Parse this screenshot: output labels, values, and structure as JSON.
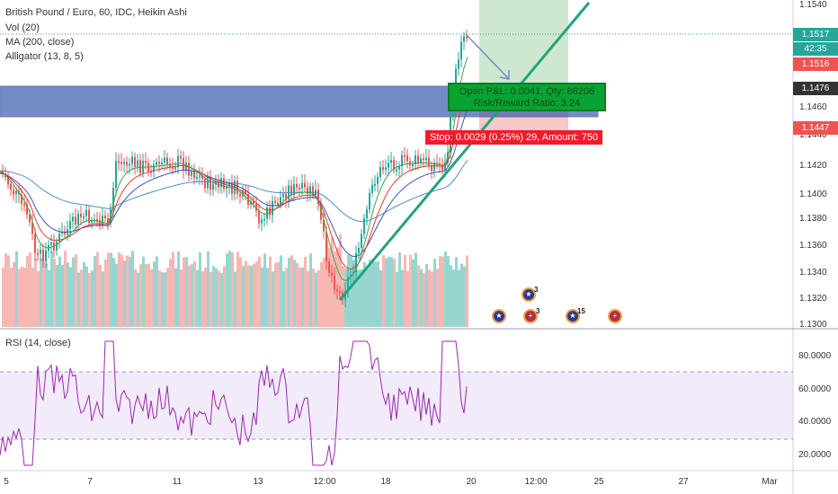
{
  "legend": {
    "title": "British Pound / Euro, 60, IDC, Heikin Ashi",
    "studies": [
      "Vol (20)",
      "MA (200, close)",
      "Alligator (13, 8, 5)"
    ],
    "rsi_label": "RSI (14, close)"
  },
  "price_axis": {
    "ticks": [
      "1.1540",
      "1.1460",
      "1.1440",
      "1.1420",
      "1.1400",
      "1.1380",
      "1.1360",
      "1.1340",
      "1.1320",
      "1.1300"
    ],
    "tags": [
      {
        "text": "1.1517",
        "color": "#26a69a"
      },
      {
        "text": "42:35",
        "color": "#26a69a"
      },
      {
        "text": "1.1516",
        "color": "#ef5350"
      },
      {
        "text": "1.1476",
        "color": "#333333"
      },
      {
        "text": "1.1447",
        "color": "#ef5350"
      }
    ]
  },
  "rsi_axis": {
    "ticks": [
      "80.0000",
      "60.0000",
      "40.0000",
      "20.0000"
    ]
  },
  "time_axis": {
    "ticks": [
      "5",
      "7",
      "11",
      "13",
      "12:00",
      "18",
      "20",
      "12:00",
      "25",
      "27",
      "Mar"
    ]
  },
  "position": {
    "pnl_label": "Open P&L: 0.0041, Qty: 86206",
    "rr_label": "Risk/Reward Ratio: 3.24",
    "stop_label": "Stop: 0.0029 (0.25%) 29, Amount: 750"
  },
  "events": [
    {
      "icon": "eu-flag-icon",
      "count": "3"
    },
    {
      "icon": "eu-flag-icon",
      "count": ""
    },
    {
      "icon": "uk-flag-icon",
      "count": "3"
    },
    {
      "icon": "eu-flag-icon",
      "count": "15"
    },
    {
      "icon": "uk-flag-icon",
      "count": ""
    }
  ],
  "colors": {
    "up": "#26a69a",
    "down": "#ef5350",
    "rsi": "#9c27b0",
    "zone": "#3a5bb0",
    "target": "#a5d6a7",
    "stop": "#ef9a9a",
    "trend": "#22a37a"
  }
}
